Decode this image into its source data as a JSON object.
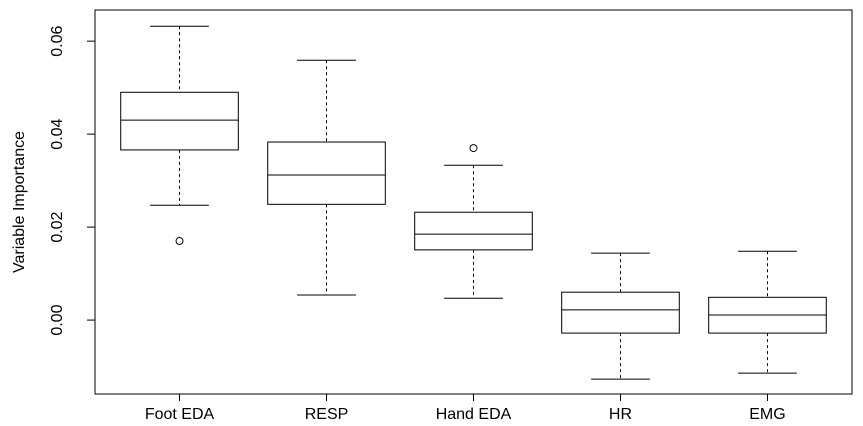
{
  "chart_data": {
    "type": "boxplot",
    "ylabel": "Variable Importance",
    "categories": [
      "Foot EDA",
      "RESP",
      "Hand EDA",
      "HR",
      "EMG"
    ],
    "boxes": [
      {
        "low": 0.0247,
        "q1": 0.0366,
        "median": 0.043,
        "q3": 0.049,
        "high": 0.0632,
        "outliers": [
          0.017
        ]
      },
      {
        "low": 0.0054,
        "q1": 0.0249,
        "median": 0.0312,
        "q3": 0.0383,
        "high": 0.0559,
        "outliers": []
      },
      {
        "low": 0.0047,
        "q1": 0.0151,
        "median": 0.0185,
        "q3": 0.0232,
        "high": 0.0333,
        "outliers": [
          0.037
        ]
      },
      {
        "low": -0.0127,
        "q1": -0.0028,
        "median": 0.0022,
        "q3": 0.006,
        "high": 0.0144,
        "outliers": []
      },
      {
        "low": -0.0114,
        "q1": -0.0028,
        "median": 0.0011,
        "q3": 0.0049,
        "high": 0.0148,
        "outliers": []
      }
    ],
    "color": "#000000",
    "ylim": [
      -0.0159,
      0.0667
    ],
    "yticks": [
      {
        "value": 0,
        "label": "0.00"
      },
      {
        "value": 0.02,
        "label": "0.02"
      },
      {
        "value": 0.04,
        "label": "0.04"
      },
      {
        "value": 0.06,
        "label": "0.06"
      }
    ]
  }
}
